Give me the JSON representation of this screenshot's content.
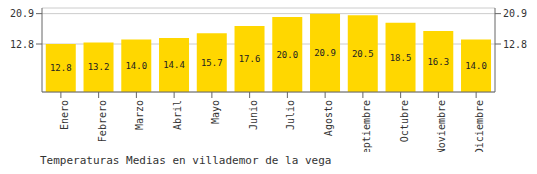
{
  "chart_data": {
    "type": "bar",
    "title": "Temperaturas Medias en villademor de la vega",
    "categories": [
      "Enero",
      "Febrero",
      "Marzo",
      "Abril",
      "Mayo",
      "Junio",
      "Julio",
      "Agosto",
      "Septiembre",
      "Octubre",
      "Noviembre",
      "Diciembre"
    ],
    "values": [
      12.8,
      13.2,
      14.0,
      14.4,
      15.7,
      17.6,
      20.0,
      20.9,
      20.5,
      18.5,
      16.3,
      14.0
    ],
    "value_labels": [
      "12.8",
      "13.2",
      "14.0",
      "14.4",
      "15.7",
      "17.6",
      "20.0",
      "20.9",
      "20.5",
      "18.5",
      "16.3",
      "14.0"
    ],
    "data_labels": true,
    "color": "#FFD700",
    "ylim": [
      0,
      22.4
    ],
    "yticks": [
      12.8,
      20.9
    ],
    "y2lim": [
      0,
      22.4
    ],
    "y2ticks": [
      12.8,
      20.9
    ],
    "grid": true
  }
}
